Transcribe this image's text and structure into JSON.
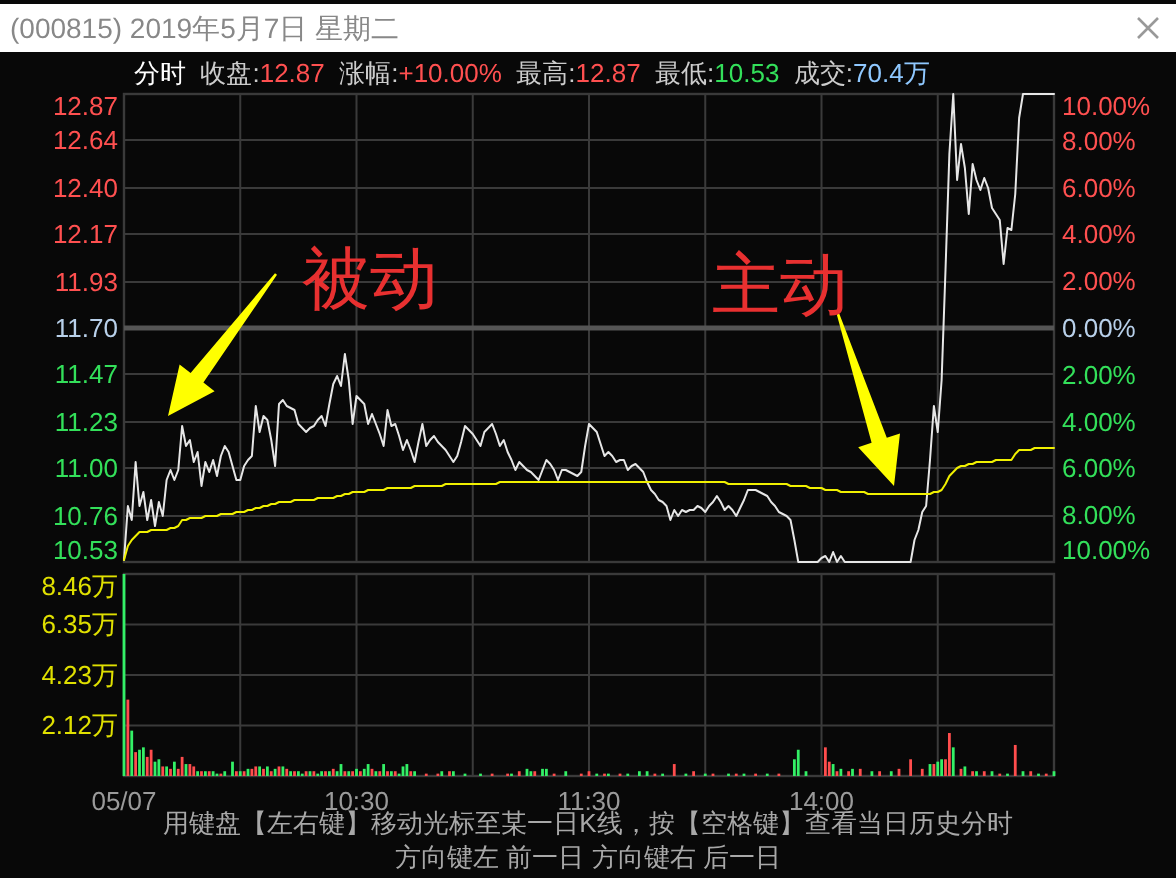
{
  "chart_data": [
    {
      "type": "line",
      "title": "(000815) 2019年5月7日 星期二",
      "subtitle": "分时  收盘:12.87  涨幅:+10.00%  最高:12.87  最低:10.53  成交:70.4万",
      "categories": [
        null,
        null,
        null,
        null,
        null,
        null,
        null,
        null,
        null,
        null,
        null,
        null,
        null,
        null,
        null,
        null,
        null,
        null,
        null,
        null,
        null,
        null,
        null,
        null,
        null,
        null,
        null,
        null,
        null,
        null,
        null,
        null,
        null,
        null,
        null,
        null,
        null,
        null,
        null,
        null,
        null,
        null,
        null,
        null,
        null,
        null,
        null,
        null,
        null,
        null,
        null,
        null,
        null,
        null,
        null,
        null,
        null,
        null,
        null,
        null,
        null,
        null,
        null,
        null,
        null,
        null,
        null,
        null,
        null,
        null,
        null,
        null,
        null,
        null,
        null,
        null,
        null,
        null,
        null,
        null,
        null,
        null,
        null,
        null,
        null,
        null,
        null,
        null,
        null,
        null,
        null,
        null,
        null,
        null,
        null,
        null,
        null,
        null,
        null,
        null,
        null,
        null,
        null,
        null,
        null,
        null,
        null,
        null,
        null,
        null,
        null,
        null,
        null,
        null,
        null,
        null,
        null,
        null,
        null,
        null,
        null,
        null,
        null,
        null,
        null,
        null,
        null,
        null,
        null,
        null,
        null,
        null,
        null,
        null,
        null,
        null,
        null,
        null,
        null,
        null,
        null,
        null,
        null,
        null,
        null,
        null,
        null,
        null,
        null,
        null,
        null,
        null,
        null,
        null,
        null,
        null,
        null,
        null,
        null,
        null,
        null,
        null,
        null,
        null,
        null,
        null,
        null,
        null,
        null,
        null,
        null,
        null,
        null,
        null,
        null,
        null,
        null,
        null,
        null,
        null,
        null,
        null,
        null,
        null,
        null,
        null,
        null,
        null,
        null,
        null,
        null,
        null,
        null,
        null,
        null,
        null,
        null,
        null,
        null,
        null,
        null,
        null,
        null,
        null,
        null,
        null,
        null,
        null,
        null,
        null,
        null,
        null,
        null,
        null,
        null,
        null,
        null,
        null,
        null,
        null,
        null,
        null,
        null,
        null,
        null,
        null,
        null,
        null,
        null,
        null,
        null,
        null,
        null,
        null,
        null,
        null,
        null,
        null,
        null,
        null,
        null
      ],
      "ylim": [
        10.53,
        12.87
      ],
      "yticks": [
        {
          "value": 12.87,
          "label": "12.87"
        },
        {
          "value": 12.64,
          "label": "12.64"
        },
        {
          "value": 12.4,
          "label": "12.40"
        },
        {
          "value": 12.17,
          "label": "12.17"
        },
        {
          "value": 11.93,
          "label": "11.93"
        },
        {
          "value": 11.7,
          "label": "11.70"
        },
        {
          "value": 11.47,
          "label": "11.47"
        },
        {
          "value": 11.23,
          "label": "11.23"
        },
        {
          "value": 11.0,
          "label": "11.00"
        },
        {
          "value": 10.76,
          "label": "10.76"
        },
        {
          "value": 10.53,
          "label": "10.53"
        }
      ],
      "y2lim": [
        -10,
        10
      ],
      "y2ticks": [
        {
          "value": 10,
          "label": "10.00%"
        },
        {
          "value": 8,
          "label": "8.00%"
        },
        {
          "value": 6,
          "label": "6.00%"
        },
        {
          "value": 4,
          "label": "4.00%"
        },
        {
          "value": 2,
          "label": "2.00%"
        },
        {
          "value": 0,
          "label": "0.00%"
        },
        {
          "value": -2,
          "label": "2.00%"
        },
        {
          "value": -4,
          "label": "4.00%"
        },
        {
          "value": -6,
          "label": "6.00%"
        },
        {
          "value": -8,
          "label": "8.00%"
        },
        {
          "value": -10,
          "label": "10.00%"
        }
      ],
      "tick_labels": "y",
      "grid": true,
      "ref_lines": [
        {
          "axis": "y",
          "value": 11.7,
          "color": "#555555"
        }
      ],
      "series": [
        {
          "color": "#e6e6e6",
          "values": [
            10.54,
            10.81,
            10.74,
            11.03,
            10.81,
            10.88,
            10.74,
            10.84,
            10.71,
            10.83,
            10.76,
            10.94,
            10.99,
            10.94,
            10.99,
            11.21,
            11.11,
            11.14,
            11.03,
            11.08,
            10.91,
            11.03,
            10.98,
            11.04,
            10.96,
            11.06,
            11.11,
            11.08,
            11.01,
            10.94,
            10.94,
            11.01,
            11.04,
            11.06,
            11.31,
            11.18,
            11.26,
            11.24,
            11.14,
            11.01,
            11.32,
            11.34,
            11.31,
            11.3,
            11.29,
            11.22,
            11.2,
            11.18,
            11.2,
            11.21,
            11.24,
            11.26,
            11.21,
            11.32,
            11.42,
            11.46,
            11.41,
            11.57,
            11.44,
            11.22,
            11.36,
            11.34,
            11.32,
            11.22,
            11.27,
            11.22,
            11.17,
            11.11,
            11.29,
            11.21,
            11.22,
            11.16,
            11.09,
            11.14,
            11.09,
            11.03,
            11.13,
            11.22,
            11.11,
            11.14,
            11.16,
            11.13,
            11.11,
            11.09,
            11.06,
            11.03,
            11.06,
            11.13,
            11.21,
            11.19,
            11.17,
            11.14,
            11.11,
            11.18,
            11.2,
            11.22,
            11.17,
            11.11,
            11.14,
            11.08,
            11.04,
            10.99,
            11.03,
            11.01,
            10.99,
            10.98,
            10.96,
            10.94,
            10.99,
            11.04,
            11.02,
            10.99,
            10.94,
            10.99,
            10.99,
            10.98,
            10.97,
            10.96,
            10.98,
            11.11,
            11.22,
            11.2,
            11.18,
            11.12,
            11.06,
            11.08,
            11.06,
            11.03,
            11.04,
            11.04,
            10.99,
            11.01,
            11.02,
            11.0,
            10.98,
            10.93,
            10.89,
            10.87,
            10.84,
            10.83,
            10.81,
            10.74,
            10.79,
            10.76,
            10.79,
            10.78,
            10.79,
            10.79,
            10.81,
            10.8,
            10.78,
            10.81,
            10.83,
            10.86,
            10.83,
            10.79,
            10.81,
            10.79,
            10.76,
            10.8,
            10.84,
            10.89,
            10.89,
            10.89,
            10.88,
            10.87,
            10.86,
            10.83,
            10.81,
            10.78,
            10.77,
            10.76,
            10.74,
            10.64,
            10.53,
            10.53,
            10.53,
            10.53,
            10.53,
            10.53,
            10.55,
            10.56,
            10.53,
            10.58,
            10.53,
            10.56,
            10.53,
            10.53,
            10.53,
            10.53,
            10.53,
            10.53,
            10.53,
            10.53,
            10.53,
            10.53,
            10.53,
            10.53,
            10.53,
            10.53,
            10.53,
            10.53,
            10.53,
            10.53,
            10.64,
            10.69,
            10.78,
            10.81,
            11.04,
            11.31,
            11.18,
            11.44,
            11.99,
            12.57,
            12.87,
            12.44,
            12.62,
            12.5,
            12.27,
            12.52,
            12.44,
            12.39,
            12.45,
            12.4,
            12.3,
            12.27,
            12.24,
            12.02,
            12.2,
            12.19,
            12.37,
            12.75,
            12.87,
            12.87,
            12.87,
            12.87,
            12.87,
            12.87,
            12.87,
            12.87,
            12.87
          ]
        },
        {
          "color": "#f0f000",
          "values": [
            10.54,
            10.61,
            10.64,
            10.66,
            10.68,
            10.68,
            10.68,
            10.69,
            10.69,
            10.69,
            10.69,
            10.69,
            10.7,
            10.7,
            10.71,
            10.74,
            10.74,
            10.75,
            10.75,
            10.75,
            10.75,
            10.76,
            10.76,
            10.76,
            10.76,
            10.77,
            10.77,
            10.77,
            10.77,
            10.78,
            10.78,
            10.78,
            10.79,
            10.79,
            10.8,
            10.8,
            10.81,
            10.81,
            10.82,
            10.82,
            10.83,
            10.83,
            10.83,
            10.83,
            10.84,
            10.84,
            10.84,
            10.84,
            10.84,
            10.84,
            10.85,
            10.85,
            10.85,
            10.85,
            10.85,
            10.86,
            10.86,
            10.87,
            10.87,
            10.88,
            10.88,
            10.88,
            10.88,
            10.89,
            10.89,
            10.89,
            10.89,
            10.89,
            10.9,
            10.9,
            10.9,
            10.9,
            10.9,
            10.9,
            10.9,
            10.91,
            10.91,
            10.91,
            10.91,
            10.91,
            10.91,
            10.91,
            10.91,
            10.92,
            10.92,
            10.92,
            10.92,
            10.92,
            10.92,
            10.92,
            10.92,
            10.92,
            10.92,
            10.92,
            10.92,
            10.92,
            10.92,
            10.93,
            10.93,
            10.93,
            10.93,
            10.93,
            10.93,
            10.93,
            10.93,
            10.93,
            10.93,
            10.93,
            10.93,
            10.93,
            10.93,
            10.93,
            10.93,
            10.93,
            10.93,
            10.93,
            10.93,
            10.93,
            10.93,
            10.93,
            10.93,
            10.93,
            10.93,
            10.93,
            10.93,
            10.93,
            10.93,
            10.93,
            10.93,
            10.93,
            10.93,
            10.93,
            10.93,
            10.93,
            10.93,
            10.93,
            10.93,
            10.93,
            10.93,
            10.93,
            10.93,
            10.93,
            10.93,
            10.93,
            10.93,
            10.93,
            10.93,
            10.93,
            10.93,
            10.93,
            10.93,
            10.93,
            10.93,
            10.93,
            10.93,
            10.93,
            10.92,
            10.92,
            10.92,
            10.92,
            10.92,
            10.92,
            10.92,
            10.92,
            10.92,
            10.92,
            10.92,
            10.92,
            10.92,
            10.92,
            10.92,
            10.92,
            10.91,
            10.91,
            10.91,
            10.91,
            10.91,
            10.9,
            10.9,
            10.9,
            10.9,
            10.89,
            10.89,
            10.89,
            10.89,
            10.88,
            10.88,
            10.88,
            10.88,
            10.88,
            10.88,
            10.88,
            10.87,
            10.87,
            10.87,
            10.87,
            10.87,
            10.87,
            10.87,
            10.87,
            10.87,
            10.87,
            10.87,
            10.87,
            10.87,
            10.87,
            10.87,
            10.87,
            10.87,
            10.88,
            10.88,
            10.89,
            10.92,
            10.96,
            10.98,
            11.0,
            11.01,
            11.01,
            11.02,
            11.02,
            11.03,
            11.03,
            11.03,
            11.03,
            11.03,
            11.04,
            11.04,
            11.04,
            11.04,
            11.04,
            11.07,
            11.09,
            11.09,
            11.09,
            11.09,
            11.1,
            11.1,
            11.1,
            11.1,
            11.1,
            11.1
          ]
        }
      ],
      "annotations": [
        "被动",
        "主动"
      ]
    },
    {
      "type": "bar",
      "categories": [
        "05/07",
        null,
        null,
        null,
        null,
        null,
        null,
        null,
        null,
        null,
        null,
        null,
        null,
        null,
        null,
        null,
        null,
        null,
        null,
        null,
        null,
        null,
        null,
        null,
        null,
        null,
        null,
        null,
        null,
        null,
        null,
        null,
        null,
        null,
        null,
        null,
        null,
        null,
        null,
        null,
        null,
        null,
        null,
        null,
        null,
        null,
        null,
        null,
        null,
        null,
        null,
        null,
        null,
        null,
        null,
        null,
        null,
        null,
        null,
        null,
        "10:30",
        null,
        null,
        null,
        null,
        null,
        null,
        null,
        null,
        null,
        null,
        null,
        null,
        null,
        null,
        null,
        null,
        null,
        null,
        null,
        null,
        null,
        null,
        null,
        null,
        null,
        null,
        null,
        null,
        null,
        null,
        null,
        null,
        null,
        null,
        null,
        null,
        null,
        null,
        null,
        null,
        null,
        null,
        null,
        null,
        null,
        null,
        null,
        null,
        null,
        null,
        null,
        null,
        null,
        null,
        null,
        null,
        null,
        null,
        null,
        "11:30",
        null,
        null,
        null,
        null,
        null,
        null,
        null,
        null,
        null,
        null,
        null,
        null,
        null,
        null,
        null,
        null,
        null,
        null,
        null,
        null,
        null,
        null,
        null,
        null,
        null,
        null,
        null,
        null,
        null,
        null,
        null,
        null,
        null,
        null,
        null,
        null,
        null,
        null,
        null,
        null,
        null,
        null,
        null,
        null,
        null,
        null,
        null,
        null,
        null,
        null,
        null,
        null,
        null,
        null,
        null,
        null,
        null,
        null,
        null,
        "14:00",
        null,
        null,
        null,
        null,
        null,
        null,
        null,
        null,
        null,
        null,
        null,
        null,
        null,
        null,
        null,
        null,
        null,
        null,
        null,
        null,
        null,
        null,
        null,
        null,
        null,
        null,
        null,
        null,
        null,
        null,
        null,
        null,
        null,
        null,
        null,
        null,
        null,
        null,
        null,
        null,
        null,
        null,
        null,
        null,
        null,
        null,
        null,
        null,
        null,
        null,
        null,
        null,
        null,
        null,
        null,
        null,
        null,
        null,
        null,
        null
      ],
      "ylim": [
        0,
        8.46
      ],
      "yticks": [
        {
          "value": 2.12,
          "label": "2.12万"
        },
        {
          "value": 4.23,
          "label": "4.23万"
        },
        {
          "value": 6.35,
          "label": "6.35万"
        },
        {
          "value": 8.46,
          "label": "8.46万"
        }
      ],
      "grid": true,
      "series": [
        {
          "color": "#ff4d4d",
          "values": [
            null,
            3.2,
            null,
            1.0,
            null,
            null,
            0.8,
            1.1,
            null,
            null,
            0.4,
            null,
            0.3,
            null,
            0.3,
            0.8,
            null,
            0.5,
            0.4,
            null,
            0.2,
            null,
            0.2,
            null,
            null,
            0.1,
            null,
            null,
            null,
            0.2,
            null,
            0.2,
            null,
            0.3,
            0.4,
            null,
            0.3,
            null,
            0.2,
            null,
            0.4,
            null,
            0.3,
            null,
            0.2,
            null,
            null,
            0.2,
            null,
            0.2,
            null,
            null,
            0.2,
            null,
            0.3,
            null,
            null,
            0.2,
            null,
            0.2,
            null,
            0.2,
            null,
            null,
            0.3,
            null,
            0.2,
            null,
            0.2,
            null,
            0.2,
            null,
            null,
            null,
            0.2,
            null,
            null,
            null,
            0.1,
            null,
            null,
            0.1,
            null,
            null,
            0.2,
            null,
            null,
            null,
            null,
            null,
            null,
            null,
            null,
            null,
            null,
            0.1,
            null,
            null,
            null,
            0.1,
            null,
            null,
            0.2,
            null,
            null,
            null,
            0.2,
            null,
            null,
            null,
            null,
            0.1,
            null,
            null,
            null,
            null,
            null,
            null,
            0.1,
            null,
            0.2,
            null,
            null,
            null,
            0.1,
            null,
            null,
            null,
            0.1,
            null,
            null,
            null,
            null,
            null,
            null,
            null,
            null,
            0.1,
            null,
            null,
            null,
            null,
            0.5,
            null,
            null,
            null,
            null,
            0.2,
            null,
            null,
            null,
            null,
            0.1,
            null,
            null,
            null,
            null,
            null,
            0.1,
            null,
            null,
            null,
            null,
            0.1,
            null,
            null,
            null,
            null,
            null,
            0.1,
            null,
            null,
            null,
            null,
            null,
            null,
            null,
            null,
            null,
            null,
            null,
            1.2,
            0.6,
            null,
            0.2,
            null,
            null,
            0.2,
            null,
            null,
            0.3,
            null,
            null,
            null,
            null,
            0.2,
            null,
            null,
            null,
            null,
            0.3,
            null,
            null,
            0.7,
            null,
            null,
            0.3,
            null,
            null,
            0.5,
            null,
            null,
            0.7,
            1.8,
            null,
            null,
            0.3,
            null,
            null,
            0.2,
            null,
            null,
            0.2,
            null,
            null,
            null,
            0.1,
            null,
            null,
            null,
            1.3,
            null,
            null,
            null,
            0.2,
            null,
            null,
            null,
            0.1,
            null,
            null
          ]
        },
        {
          "color": "#33f066",
          "values": [
            8.46,
            null,
            1.9,
            null,
            1.1,
            1.2,
            null,
            null,
            0.6,
            0.7,
            null,
            0.4,
            null,
            0.6,
            null,
            null,
            0.5,
            null,
            null,
            0.2,
            null,
            0.2,
            null,
            0.2,
            0.1,
            null,
            0.2,
            null,
            0.6,
            null,
            0.2,
            null,
            0.3,
            null,
            null,
            0.4,
            null,
            0.4,
            null,
            0.3,
            null,
            0.4,
            null,
            0.2,
            null,
            0.2,
            0.1,
            null,
            0.2,
            null,
            0.1,
            0.2,
            null,
            0.2,
            null,
            0.2,
            0.5,
            null,
            0.2,
            null,
            0.3,
            null,
            0.3,
            0.5,
            null,
            0.2,
            null,
            0.5,
            null,
            0.2,
            null,
            0.1,
            0.4,
            0.5,
            null,
            0.2,
            null,
            null,
            null,
            null,
            null,
            null,
            0.2,
            null,
            null,
            0.2,
            null,
            null,
            0.1,
            null,
            null,
            null,
            0.1,
            null,
            null,
            null,
            null,
            null,
            null,
            null,
            0.1,
            null,
            null,
            null,
            0.3,
            0.2,
            null,
            null,
            0.3,
            0.3,
            null,
            null,
            null,
            null,
            0.2,
            null,
            null,
            null,
            null,
            null,
            null,
            null,
            0.1,
            null,
            null,
            0.1,
            null,
            null,
            null,
            null,
            0.1,
            null,
            null,
            0.2,
            null,
            0.2,
            null,
            null,
            null,
            0.1,
            null,
            null,
            null,
            null,
            null,
            0.1,
            null,
            null,
            null,
            null,
            0.1,
            null,
            null,
            null,
            null,
            null,
            0.1,
            null,
            null,
            null,
            0.1,
            null,
            null,
            null,
            null,
            null,
            0.1,
            null,
            null,
            null,
            null,
            null,
            null,
            0.7,
            1.1,
            null,
            0.2,
            null,
            null,
            null,
            null,
            null,
            null,
            0.5,
            null,
            0.3,
            null,
            null,
            0.3,
            null,
            null,
            null,
            null,
            0.2,
            null,
            null,
            null,
            null,
            0.2,
            null,
            null,
            null,
            null,
            null,
            null,
            null,
            null,
            null,
            0.5,
            null,
            0.6,
            0.7,
            null,
            null,
            1.2,
            null,
            null,
            0.4,
            null,
            null,
            0.2,
            null,
            null,
            null,
            0.2,
            null,
            null,
            null,
            0.1,
            null,
            null,
            null,
            0.2,
            null,
            null,
            null,
            0.1,
            null,
            null,
            null,
            0.2
          ]
        }
      ],
      "annotations": [
        "用键盘【左右键】移动光标至某一日K线，按【空格键】查看当日历史分时",
        "方向键左 前一日   方向键右 后一日"
      ]
    }
  ]
}
